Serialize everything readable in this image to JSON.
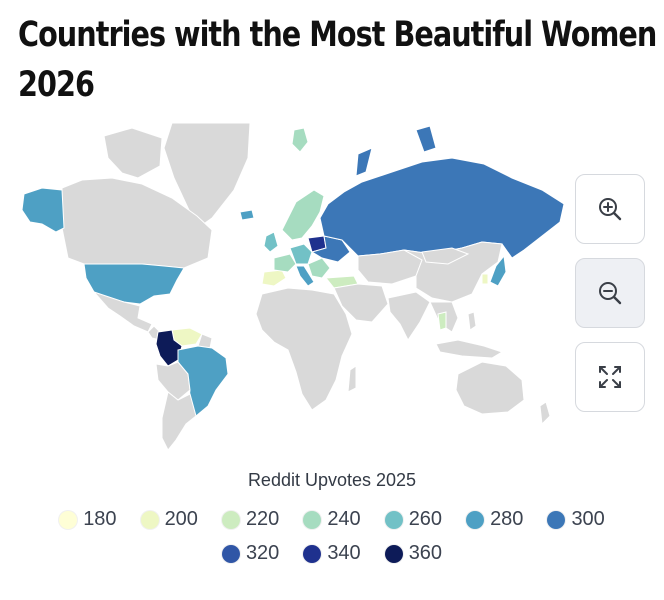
{
  "title_lines": [
    "Countries with the Most Beautiful Women",
    "2026"
  ],
  "legend": {
    "title": "Reddit Upvotes 2025",
    "items": [
      {
        "label": "180",
        "color": "#fefed6"
      },
      {
        "label": "200",
        "color": "#eef7c4"
      },
      {
        "label": "220",
        "color": "#cdecc0"
      },
      {
        "label": "240",
        "color": "#a6dcc0"
      },
      {
        "label": "260",
        "color": "#72c1c6"
      },
      {
        "label": "280",
        "color": "#4ea0c4"
      },
      {
        "label": "300",
        "color": "#3c77b7"
      },
      {
        "label": "320",
        "color": "#3056a6"
      },
      {
        "label": "340",
        "color": "#1f318e"
      },
      {
        "label": "360",
        "color": "#0d1b58"
      }
    ]
  },
  "controls": {
    "zoom_in": "zoom-in-icon",
    "zoom_out": "zoom-out-icon",
    "reset": "fullscreen-icon"
  },
  "colors": {
    "no_data": "#d9d9d9",
    "border": "#ffffff"
  }
}
